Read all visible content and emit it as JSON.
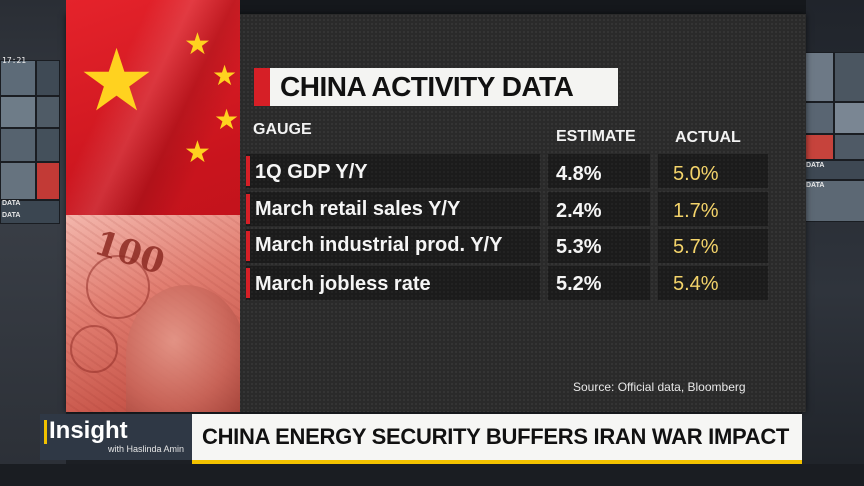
{
  "colors": {
    "accent_red": "#d61f26",
    "actual_value": "#f3d36a",
    "lower_third_yellow": "#f2c200"
  },
  "background": {
    "clock": "17:21",
    "monitor_labels_left": [
      "DATA",
      "DATA"
    ],
    "monitor_labels_right": [
      "DATA",
      "DATA"
    ]
  },
  "graphic": {
    "title": "CHINA ACTIVITY DATA",
    "headers": {
      "gauge": "GAUGE",
      "estimate": "ESTIMATE",
      "actual": "ACTUAL"
    },
    "rows": [
      {
        "gauge": "1Q GDP Y/Y",
        "estimate": "4.8%",
        "actual": "5.0%"
      },
      {
        "gauge": "March retail sales Y/Y",
        "estimate": "2.4%",
        "actual": "1.7%"
      },
      {
        "gauge": "March industrial prod. Y/Y",
        "estimate": "5.3%",
        "actual": "5.7%"
      },
      {
        "gauge": "March jobless rate",
        "estimate": "5.2%",
        "actual": "5.4%"
      }
    ],
    "source": "Source: Official data, Bloomberg",
    "banknote_denomination": "100"
  },
  "lower_third": {
    "show_title": "Insight",
    "host": "with Haslinda Amin",
    "headline": "CHINA ENERGY SECURITY BUFFERS IRAN WAR IMPACT"
  }
}
